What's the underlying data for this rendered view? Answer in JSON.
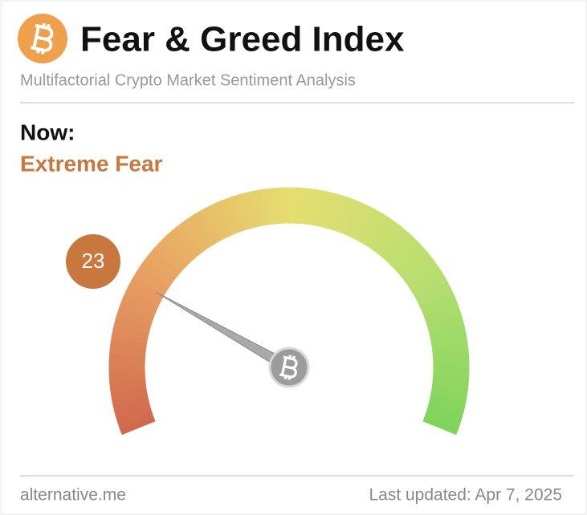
{
  "header": {
    "title": "Fear & Greed Index",
    "subtitle": "Multifactorial Crypto Market Sentiment Analysis"
  },
  "now": {
    "label": "Now:",
    "classification": "Extreme Fear"
  },
  "gauge": {
    "value": 23
  },
  "footer": {
    "source": "alternative.me",
    "updated": "Last updated: Apr 7, 2025"
  }
}
